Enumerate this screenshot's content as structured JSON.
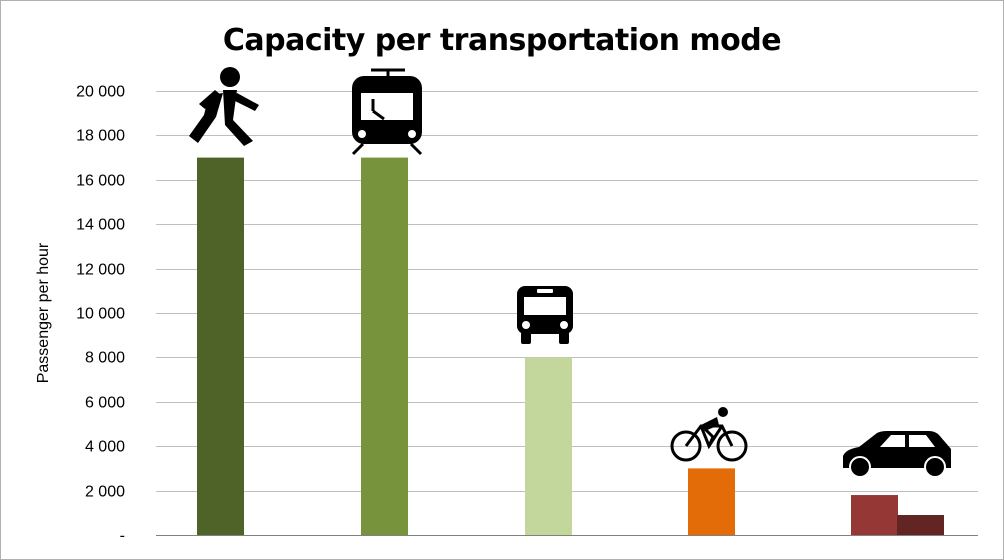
{
  "chart_data": {
    "type": "bar",
    "title": "Capacity per transportation mode",
    "ylabel": "Passenger per hour",
    "xlabel": "",
    "ylim": [
      0,
      20000
    ],
    "yticks": [
      0,
      2000,
      4000,
      6000,
      8000,
      10000,
      12000,
      14000,
      16000,
      18000,
      20000
    ],
    "ytick_labels": [
      "-",
      "2 000",
      "4 000",
      "6 000",
      "8 000",
      "10 000",
      "12 000",
      "14 000",
      "16 000",
      "18 000",
      "20 000"
    ],
    "grid": true,
    "legend": "none",
    "categories": [
      "walking-icon",
      "tram-icon",
      "bus-icon",
      "bicycle-icon",
      "car-icon"
    ],
    "bars": [
      {
        "category": "walking-icon",
        "value": 17000,
        "color": "#4f6228"
      },
      {
        "category": "tram-icon",
        "value": 17000,
        "color": "#77933c"
      },
      {
        "category": "bus-icon",
        "value": 8000,
        "color": "#c3d69b"
      },
      {
        "category": "bicycle-icon",
        "value": 3000,
        "color": "#e36c09"
      },
      {
        "category": "car-icon",
        "value": 1800,
        "color": "#953735"
      },
      {
        "category": "car-icon",
        "value": 900,
        "color": "#632523"
      }
    ],
    "grid_color": "#bfbfbf",
    "axis_color": "#808080"
  }
}
